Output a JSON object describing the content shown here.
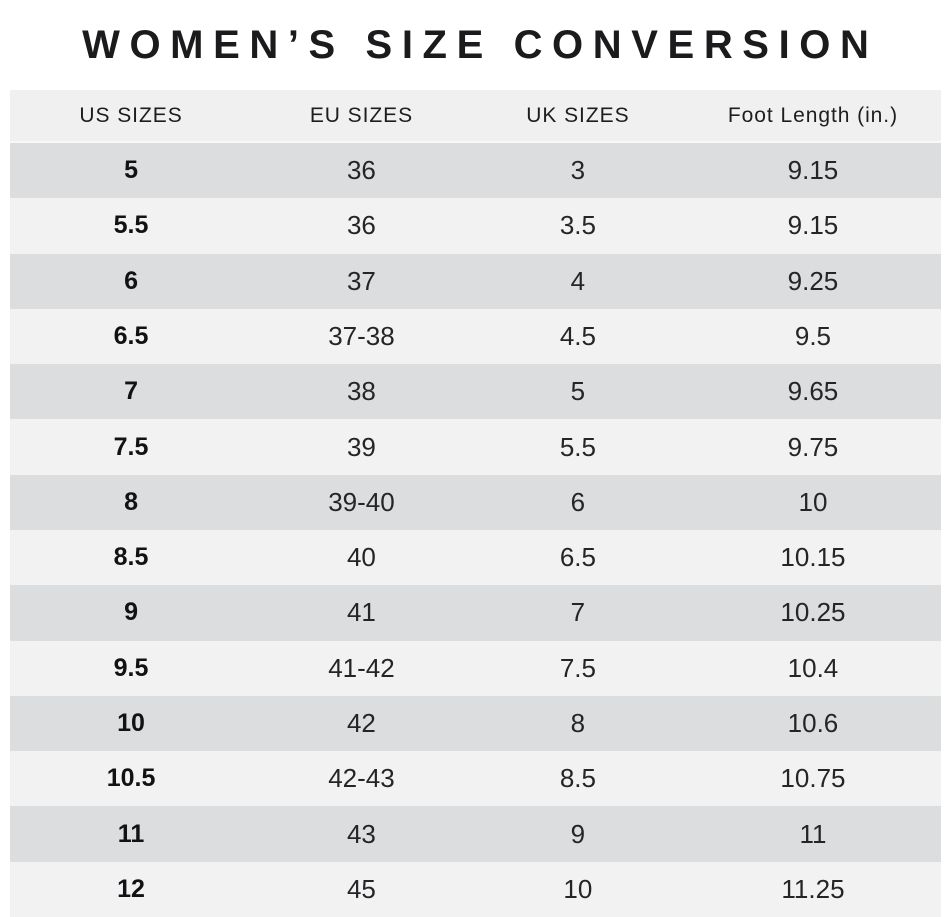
{
  "title": "WOMEN’S SIZE CONVERSION",
  "table": {
    "columns": [
      "US SIZES",
      "EU SIZES",
      "UK SIZES",
      "Foot Length (in.)"
    ],
    "rows": [
      [
        "5",
        "36",
        "3",
        "9.15"
      ],
      [
        "5.5",
        "36",
        "3.5",
        "9.15"
      ],
      [
        "6",
        "37",
        "4",
        "9.25"
      ],
      [
        "6.5",
        "37-38",
        "4.5",
        "9.5"
      ],
      [
        "7",
        "38",
        "5",
        "9.65"
      ],
      [
        "7.5",
        "39",
        "5.5",
        "9.75"
      ],
      [
        "8",
        "39-40",
        "6",
        "10"
      ],
      [
        "8.5",
        "40",
        "6.5",
        "10.15"
      ],
      [
        "9",
        "41",
        "7",
        "10.25"
      ],
      [
        "9.5",
        "41-42",
        "7.5",
        "10.4"
      ],
      [
        "10",
        "42",
        "8",
        "10.6"
      ],
      [
        "10.5",
        "42-43",
        "8.5",
        "10.75"
      ],
      [
        "11",
        "43",
        "9",
        "11"
      ],
      [
        "12",
        "45",
        "10",
        "11.25"
      ]
    ],
    "colors": {
      "header_bg": "#f0f0f1",
      "row_dark": "#dcddde",
      "row_light": "#f2f2f3",
      "title_text": "#1b1b1d",
      "cell_text": "#252527"
    }
  }
}
